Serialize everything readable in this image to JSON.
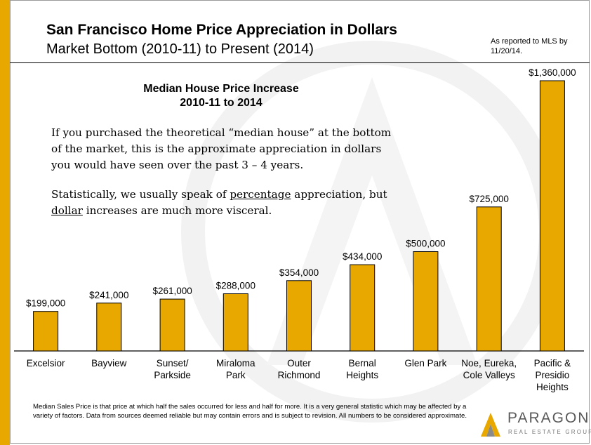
{
  "header": {
    "title": "San Francisco Home Price Appreciation in Dollars",
    "subtitle": "Market Bottom (2010-11) to Present (2014)",
    "source_note": "As reported to MLS by 11/20/14."
  },
  "body_text": {
    "heading_line1": "Median House Price Increase",
    "heading_line2": "2010-11 to 2014",
    "para1": "If you purchased the theoretical “median house” at the bottom of the market, this is the approximate appreciation in dollars you would have seen over the past 3 – 4 years.",
    "para2_pre": "Statistically, we usually speak of ",
    "para2_u1": "percentage",
    "para2_mid": " appreciation, but ",
    "para2_u2": "dollar",
    "para2_post": " increases are much more visceral."
  },
  "footnote": "Median Sales Price is that price at which half the sales occurred for less and half for more. It is a very general statistic which may be affected by a variety of factors. Data from sources deemed reliable but may contain errors and is subject to revision.  All numbers to be considered approximate.",
  "logo": {
    "name": "PARAGON",
    "tagline": "REAL ESTATE GROUP"
  },
  "colors": {
    "accent": "#e8a800",
    "bar": "#e8a800",
    "bar_stroke": "#000000"
  },
  "chart_data": {
    "type": "bar",
    "title": "Median House Price Increase 2010-11 to 2014",
    "categories": [
      [
        "Excelsior"
      ],
      [
        "Bayview"
      ],
      [
        "Sunset/",
        "Parkside"
      ],
      [
        "Miraloma",
        "Park"
      ],
      [
        "Outer",
        "Richmond"
      ],
      [
        "Bernal",
        "Heights"
      ],
      [
        "Glen Park"
      ],
      [
        "Noe, Eureka,",
        "Cole Valleys"
      ],
      [
        "Pacific &",
        "Presidio",
        "Heights"
      ]
    ],
    "values": [
      199000,
      241000,
      261000,
      288000,
      354000,
      434000,
      500000,
      725000,
      1360000
    ],
    "data_labels": [
      "$199,000",
      "$241,000",
      "$261,000",
      "$288,000",
      "$354,000",
      "$434,000",
      "$500,000",
      "$725,000",
      "$1,360,000"
    ],
    "ylim": [
      0,
      1360000
    ],
    "grid": false,
    "legend": "none"
  }
}
